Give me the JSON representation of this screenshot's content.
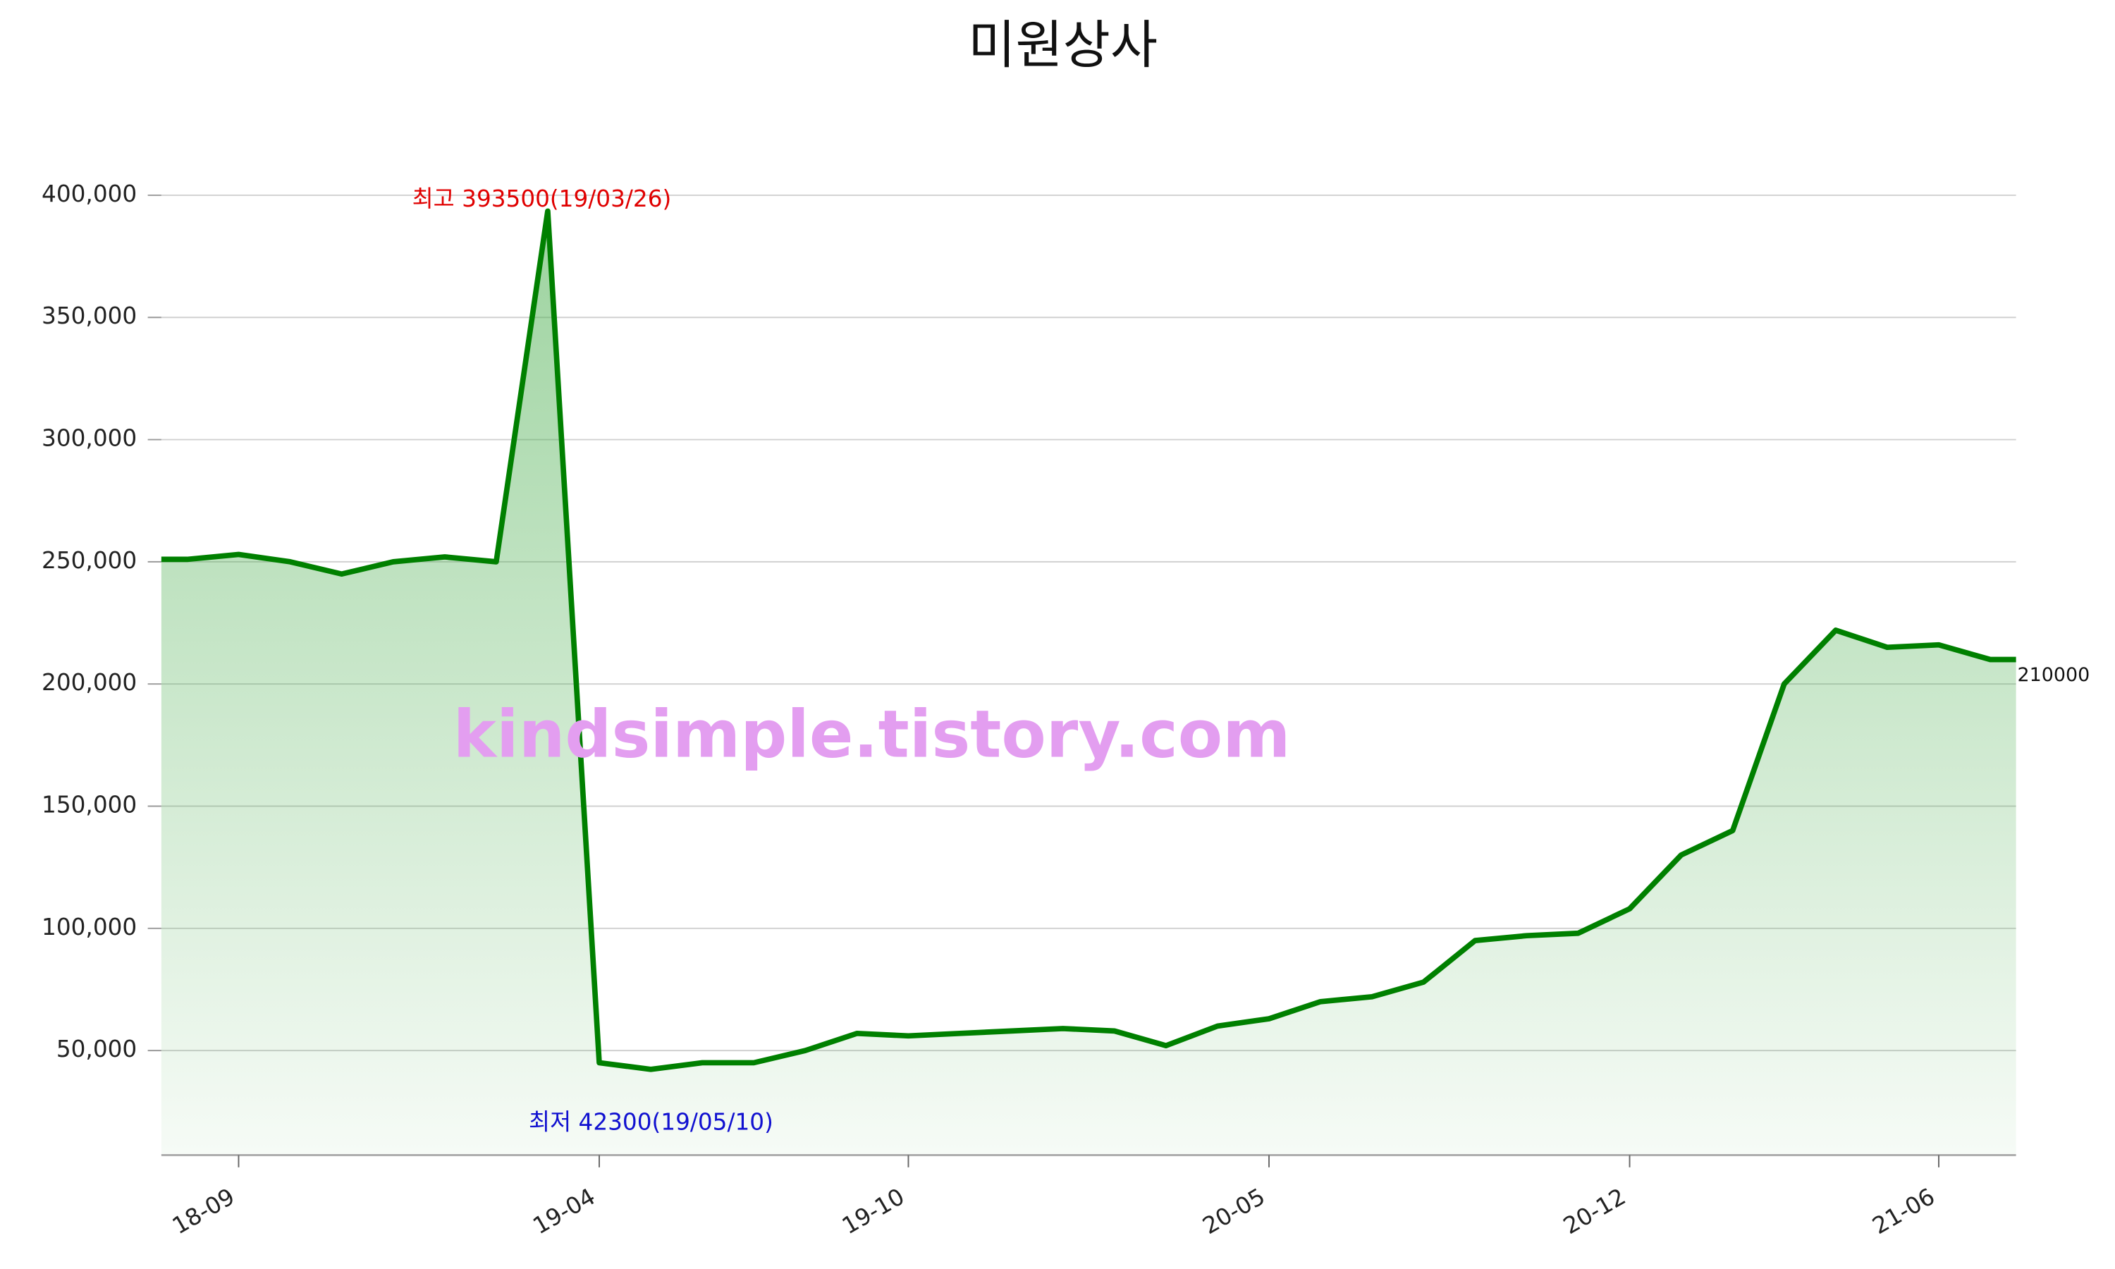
{
  "chart_data": {
    "type": "line",
    "title": "미원상사",
    "categories": [
      null,
      "18-09",
      null,
      null,
      null,
      null,
      null,
      null,
      "19-04",
      null,
      null,
      null,
      null,
      null,
      "19-10",
      null,
      null,
      null,
      null,
      null,
      null,
      "20-05",
      null,
      null,
      null,
      null,
      null,
      null,
      "20-12",
      null,
      null,
      null,
      null,
      null,
      "21-06",
      null
    ],
    "series": [
      {
        "name": "미원상사",
        "color": "#008000",
        "values": [
          251000,
          253000,
          250000,
          245000,
          250000,
          252000,
          250000,
          393500,
          45000,
          42300,
          45000,
          45000,
          50000,
          57000,
          56000,
          57000,
          58000,
          59000,
          58000,
          52000,
          60000,
          63000,
          70000,
          72000,
          78000,
          95000,
          97000,
          98000,
          108000,
          130000,
          140000,
          200000,
          222000,
          215000,
          216000,
          210000
        ]
      }
    ],
    "ylim": [
      7200,
      400000
    ],
    "yticks": [
      {
        "value": 50000,
        "label": "50,000"
      },
      {
        "value": 100000,
        "label": "100,000"
      },
      {
        "value": 150000,
        "label": "150,000"
      },
      {
        "value": 200000,
        "label": "200,000"
      },
      {
        "value": 250000,
        "label": "250,000"
      },
      {
        "value": 300000,
        "label": "300,000"
      },
      {
        "value": 350000,
        "label": "350,000"
      },
      {
        "value": 400000,
        "label": "400,000"
      }
    ],
    "grid": true,
    "annotations": {
      "high": "최고 393500(19/03/26)",
      "low": "최저 42300(19/05/10)",
      "watermark": "kindsimple.tistory.com"
    }
  }
}
